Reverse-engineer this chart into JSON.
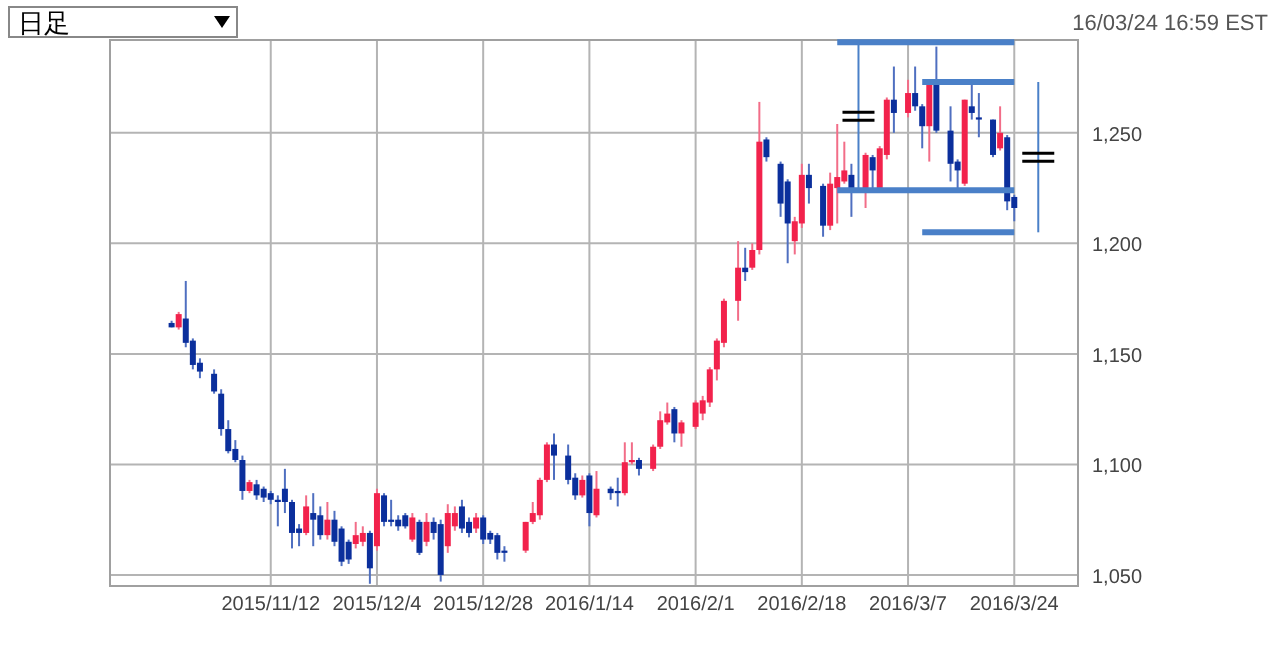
{
  "chart_data": {
    "type": "candlestick",
    "title": "日足",
    "subtitle": "16/03/24 16:59 EST",
    "categories": [
      null,
      null,
      null,
      null,
      null,
      null,
      null,
      null,
      null,
      null,
      null,
      null,
      null,
      null,
      "2015/11/12",
      null,
      null,
      null,
      null,
      null,
      null,
      null,
      null,
      null,
      null,
      null,
      null,
      null,
      null,
      "2015/12/4",
      null,
      null,
      null,
      null,
      null,
      null,
      null,
      null,
      null,
      null,
      null,
      null,
      null,
      null,
      "2015/12/28",
      null,
      null,
      null,
      null,
      null,
      null,
      null,
      null,
      null,
      null,
      null,
      null,
      null,
      null,
      "2016/1/14",
      null,
      null,
      null,
      null,
      null,
      null,
      null,
      null,
      null,
      null,
      null,
      null,
      null,
      null,
      "2016/2/1",
      null,
      null,
      null,
      null,
      null,
      null,
      null,
      null,
      null,
      null,
      null,
      null,
      null,
      null,
      "2016/2/18",
      null,
      null,
      null,
      null,
      null,
      null,
      null,
      null,
      null,
      null,
      null,
      null,
      null,
      null,
      "2016/3/7",
      null,
      null,
      null,
      null,
      null,
      null,
      null,
      null,
      null,
      null,
      null,
      null,
      null,
      null,
      "2016/3/24"
    ],
    "ohlc": [
      [
        1164,
        1165,
        1162,
        1162
      ],
      [
        1162,
        1169,
        1161,
        1168
      ],
      [
        1166,
        1183,
        1153,
        1155
      ],
      [
        1156,
        1157,
        1143,
        1145
      ],
      [
        1146,
        1148,
        1139,
        1142
      ],
      null,
      [
        1141,
        1143,
        1132,
        1133
      ],
      [
        1132,
        1134,
        1113,
        1116
      ],
      [
        1116,
        1120,
        1105,
        1106
      ],
      [
        1107,
        1111,
        1101,
        1102
      ],
      [
        1102,
        1104,
        1084,
        1088
      ],
      [
        1088,
        1093,
        1087,
        1092
      ],
      [
        1091,
        1093,
        1084,
        1086
      ],
      [
        1089,
        1090,
        1083,
        1085
      ],
      [
        1087,
        1088,
        1082,
        1084
      ],
      [
        1084,
        1086,
        1072,
        1083
      ],
      [
        1089,
        1098,
        1078,
        1083
      ],
      [
        1083,
        1084,
        1062,
        1069
      ],
      [
        1071,
        1073,
        1063,
        1069
      ],
      [
        1069,
        1086,
        1068,
        1081
      ],
      [
        1078,
        1087,
        1063,
        1075
      ],
      [
        1077,
        1081,
        1066,
        1068
      ],
      [
        1068,
        1083,
        1066,
        1075
      ],
      [
        1075,
        1079,
        1063,
        1065
      ],
      [
        1071,
        1072,
        1054,
        1056
      ],
      [
        1065,
        1066,
        1055,
        1057
      ],
      [
        1064,
        1074,
        1062,
        1068
      ],
      [
        1065,
        1072,
        1063,
        1069
      ],
      [
        1069,
        1070,
        1046,
        1053
      ],
      [
        1063,
        1089,
        1061,
        1087
      ],
      [
        1086,
        1087,
        1072,
        1074
      ],
      [
        1075,
        1084,
        1072,
        1074
      ],
      [
        1075,
        1077,
        1070,
        1072
      ],
      [
        1077,
        1078,
        1071,
        1072
      ],
      [
        1066,
        1078,
        1065,
        1076
      ],
      [
        1074,
        1075,
        1059,
        1060
      ],
      [
        1065,
        1078,
        1063,
        1074
      ],
      [
        1074,
        1076,
        1066,
        1069
      ],
      [
        1073,
        1075,
        1047,
        1050
      ],
      [
        1063,
        1082,
        1060,
        1078
      ],
      [
        1072,
        1081,
        1070,
        1078
      ],
      [
        1081,
        1084,
        1069,
        1071
      ],
      [
        1074,
        1076,
        1067,
        1069
      ],
      [
        1071,
        1078,
        1069,
        1076
      ],
      [
        1076,
        1077,
        1064,
        1066
      ],
      [
        1069,
        1070,
        1064,
        1066
      ],
      [
        1068,
        1069,
        1057,
        1060
      ],
      [
        1061,
        1063,
        1056,
        1060
      ],
      null,
      null,
      [
        1061,
        1074,
        1060,
        1074
      ],
      [
        1074,
        1083,
        1073,
        1078
      ],
      [
        1077,
        1094,
        1075,
        1093
      ],
      [
        1093,
        1110,
        1092,
        1109
      ],
      [
        1109,
        1114,
        1093,
        1104
      ],
      null,
      [
        1104,
        1109,
        1091,
        1093
      ],
      [
        1094,
        1096,
        1084,
        1086
      ],
      [
        1086,
        1095,
        1085,
        1093
      ],
      [
        1095,
        1096,
        1072,
        1078
      ],
      [
        1077,
        1097,
        1076,
        1089
      ],
      null,
      [
        1089,
        1090,
        1084,
        1087
      ],
      [
        1088,
        1094,
        1081,
        1087
      ],
      [
        1087,
        1110,
        1086,
        1101
      ],
      [
        1101,
        1110,
        1100,
        1102
      ],
      [
        1102,
        1103,
        1095,
        1098
      ],
      null,
      [
        1098,
        1109,
        1097,
        1108
      ],
      [
        1108,
        1124,
        1107,
        1120
      ],
      [
        1119,
        1128,
        1118,
        1123
      ],
      [
        1125,
        1126,
        1110,
        1114
      ],
      [
        1114,
        1120,
        1108,
        1119
      ],
      null,
      [
        1117,
        1129,
        1116,
        1128
      ],
      [
        1123,
        1131,
        1120,
        1129
      ],
      [
        1128,
        1144,
        1126,
        1143
      ],
      [
        1143,
        1157,
        1138,
        1156
      ],
      [
        1155,
        1175,
        1153,
        1174
      ],
      null,
      [
        1174,
        1201,
        1165,
        1189
      ],
      [
        1189,
        1198,
        1183,
        1187
      ],
      [
        1189,
        1200,
        1188,
        1197
      ],
      [
        1197,
        1264,
        1195,
        1246
      ],
      [
        1247,
        1248,
        1237,
        1239
      ],
      null,
      [
        1236,
        1237,
        1212,
        1218
      ],
      [
        1228,
        1229,
        1191,
        1209
      ],
      [
        1201,
        1212,
        1195,
        1210
      ],
      [
        1209,
        1236,
        1207,
        1231
      ],
      [
        1231,
        1236,
        1218,
        1225
      ],
      null,
      [
        1226,
        1227,
        1203,
        1208
      ],
      [
        1208,
        1232,
        1206,
        1227
      ],
      [
        1225,
        1254,
        1209,
        1230
      ],
      [
        1228,
        1246,
        1227,
        1233
      ],
      [
        1231,
        1236,
        1212,
        1225
      ],
      null,
      [
        1225,
        1241,
        1216,
        1240
      ],
      [
        1239,
        1240,
        1225,
        1233
      ],
      [
        1225,
        1244,
        1224,
        1243
      ],
      [
        1240,
        1266,
        1238,
        1265
      ],
      [
        1265,
        1280,
        1250,
        1259
      ],
      null,
      [
        1259,
        1274,
        1257,
        1268
      ],
      [
        1268,
        1280,
        1260,
        1262
      ],
      [
        1262,
        1263,
        1243,
        1253
      ],
      [
        1253,
        1274,
        1237,
        1273
      ],
      [
        1272,
        1289,
        1250,
        1251
      ],
      null,
      [
        1251,
        1262,
        1228,
        1236
      ],
      [
        1237,
        1238,
        1225,
        1233
      ],
      [
        1227,
        1265,
        1226,
        1265
      ],
      [
        1262,
        1272,
        1256,
        1259
      ],
      [
        1257,
        1268,
        1248,
        1256
      ],
      null,
      [
        1256,
        1256,
        1239,
        1240
      ],
      [
        1243,
        1262,
        1242,
        1250
      ],
      [
        1248,
        1249,
        1215,
        1219
      ],
      [
        1221,
        1222,
        1210,
        1216
      ]
    ],
    "series": [
      {
        "type": "line",
        "color": "#4a80c8",
        "values": [
          null,
          null,
          null,
          null,
          null,
          null,
          null,
          null,
          null,
          null,
          null,
          null,
          null,
          null,
          null,
          null,
          null,
          null,
          null,
          null,
          null,
          null,
          null,
          null,
          null,
          null,
          null,
          null,
          null,
          null,
          null,
          null,
          null,
          null,
          null,
          null,
          null,
          null,
          null,
          null,
          null,
          null,
          null,
          null,
          null,
          null,
          null,
          null,
          null,
          null,
          null,
          null,
          null,
          null,
          null,
          null,
          null,
          null,
          null,
          null,
          null,
          null,
          null,
          null,
          null,
          null,
          null,
          null,
          null,
          null,
          null,
          null,
          null,
          null,
          null,
          null,
          null,
          null,
          null,
          null,
          null,
          null,
          null,
          null,
          null,
          null,
          null,
          null,
          null,
          null,
          null,
          null,
          null,
          null,
          1291,
          1291,
          1291,
          1291,
          1291,
          1291,
          1291,
          1291,
          1291,
          1291,
          1291,
          1291,
          1291,
          1291,
          1291,
          1291,
          1291,
          1291,
          1291,
          1291,
          1291,
          1291,
          1291,
          1291,
          1291,
          1291
        ]
      },
      {
        "type": "line",
        "color": "#4a80c8",
        "values": [
          null,
          null,
          null,
          null,
          null,
          null,
          null,
          null,
          null,
          null,
          null,
          null,
          null,
          null,
          null,
          null,
          null,
          null,
          null,
          null,
          null,
          null,
          null,
          null,
          null,
          null,
          null,
          null,
          null,
          null,
          null,
          null,
          null,
          null,
          null,
          null,
          null,
          null,
          null,
          null,
          null,
          null,
          null,
          null,
          null,
          null,
          null,
          null,
          null,
          null,
          null,
          null,
          null,
          null,
          null,
          null,
          null,
          null,
          null,
          null,
          null,
          null,
          null,
          null,
          null,
          null,
          null,
          null,
          null,
          null,
          null,
          null,
          null,
          null,
          null,
          null,
          null,
          null,
          null,
          null,
          null,
          null,
          null,
          null,
          null,
          null,
          null,
          null,
          null,
          null,
          null,
          null,
          null,
          null,
          1224,
          1224,
          1224,
          1224,
          1224,
          1224,
          1224,
          1224,
          1224,
          1224,
          1224,
          1224,
          1224,
          1224,
          1224,
          1224,
          1224,
          1224,
          1224,
          1224,
          1224,
          1224,
          1224,
          1224,
          1224,
          1224
        ]
      },
      {
        "type": "line",
        "color": "#4a80c8",
        "values": [
          null,
          null,
          null,
          null,
          null,
          null,
          null,
          null,
          null,
          null,
          null,
          null,
          null,
          null,
          null,
          null,
          null,
          null,
          null,
          null,
          null,
          null,
          null,
          null,
          null,
          null,
          null,
          null,
          null,
          null,
          null,
          null,
          null,
          null,
          null,
          null,
          null,
          null,
          null,
          null,
          null,
          null,
          null,
          null,
          null,
          null,
          null,
          null,
          null,
          null,
          null,
          null,
          null,
          null,
          null,
          null,
          null,
          null,
          null,
          null,
          null,
          null,
          null,
          null,
          null,
          null,
          null,
          null,
          null,
          null,
          null,
          null,
          null,
          null,
          null,
          null,
          null,
          null,
          null,
          null,
          null,
          null,
          null,
          null,
          null,
          null,
          null,
          null,
          null,
          null,
          null,
          null,
          null,
          null,
          null,
          null,
          null,
          null,
          null,
          null,
          null,
          null,
          null,
          null,
          null,
          null,
          1273,
          1273,
          1273,
          1273,
          1273,
          1273,
          1273,
          1273,
          1273,
          1273,
          1273,
          1273,
          1273,
          1273
        ]
      },
      {
        "type": "line",
        "color": "#4a80c8",
        "values": [
          null,
          null,
          null,
          null,
          null,
          null,
          null,
          null,
          null,
          null,
          null,
          null,
          null,
          null,
          null,
          null,
          null,
          null,
          null,
          null,
          null,
          null,
          null,
          null,
          null,
          null,
          null,
          null,
          null,
          null,
          null,
          null,
          null,
          null,
          null,
          null,
          null,
          null,
          null,
          null,
          null,
          null,
          null,
          null,
          null,
          null,
          null,
          null,
          null,
          null,
          null,
          null,
          null,
          null,
          null,
          null,
          null,
          null,
          null,
          null,
          null,
          null,
          null,
          null,
          null,
          null,
          null,
          null,
          null,
          null,
          null,
          null,
          null,
          null,
          null,
          null,
          null,
          null,
          null,
          null,
          null,
          null,
          null,
          null,
          null,
          null,
          null,
          null,
          null,
          null,
          null,
          null,
          null,
          null,
          null,
          null,
          null,
          null,
          null,
          null,
          null,
          null,
          null,
          null,
          null,
          null,
          1205,
          1205,
          1205,
          1205,
          1205,
          1205,
          1205,
          1205,
          1205,
          1205,
          1205,
          1205,
          1205,
          1205
        ]
      }
    ],
    "ylim": [
      1045,
      1292
    ],
    "yticks": [
      {
        "value": 1050,
        "label": "1,050"
      },
      {
        "value": 1100,
        "label": "1,100"
      },
      {
        "value": 1150,
        "label": "1,150"
      },
      {
        "value": 1200,
        "label": "1,200"
      },
      {
        "value": 1250,
        "label": "1,250"
      }
    ],
    "grid": true
  }
}
